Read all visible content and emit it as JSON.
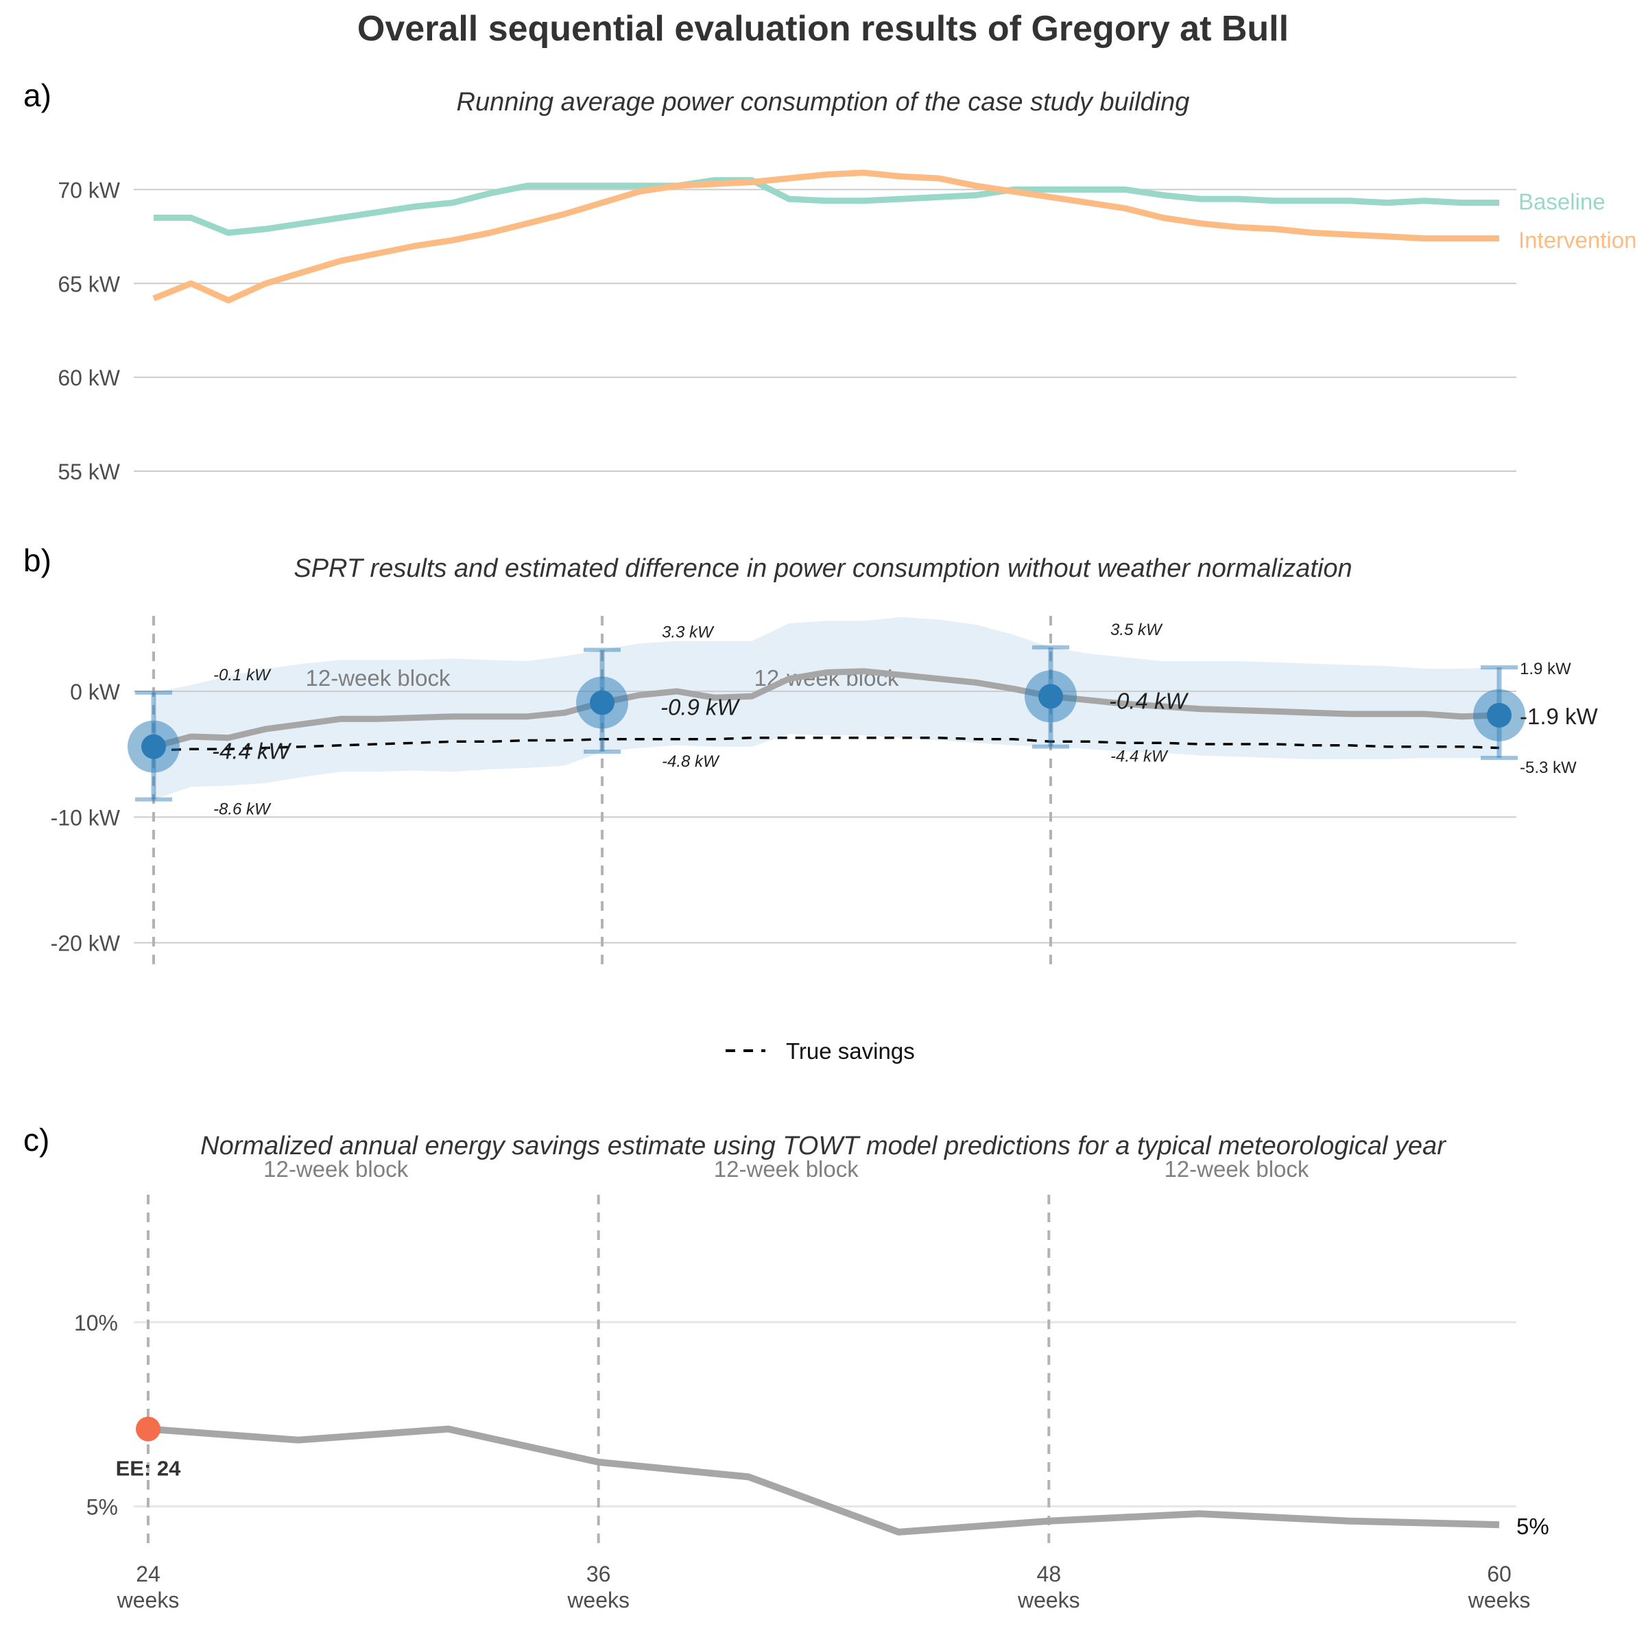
{
  "title": "Overall sequential evaluation results of Gregory at Bull",
  "panels": {
    "a": {
      "label": "a)",
      "title": "Running average power consumption of the case study building"
    },
    "b": {
      "label": "b)",
      "title": "SPRT results and estimated difference in power consumption without weather normalization"
    },
    "c": {
      "label": "c)",
      "title": "Normalized annual energy savings estimate using TOWT model predictions for a typical meteorological year"
    }
  },
  "colors": {
    "baseline": "#99d8c9",
    "intervention": "#fdbb84",
    "difference_line": "#a6a6a6",
    "ci_band": "#e4eff8",
    "sprt_point": "#2a7bb6",
    "early_exit": "#f46d4d",
    "grid": "#cccccc",
    "vline": "#b3b3b3"
  },
  "chart_data": [
    {
      "id": "a",
      "type": "line",
      "title": "Running average power consumption of the case study building",
      "x_unit": "weeks",
      "xlim": [
        24,
        60
      ],
      "ylim": [
        53.5,
        72.5
      ],
      "yticks": [
        55,
        60,
        65,
        70
      ],
      "ytick_labels": [
        "55 kW",
        "60 kW",
        "65 kW",
        "70 kW"
      ],
      "grid": true,
      "legend": "direct labels at right",
      "x": [
        24,
        25,
        26,
        27,
        28,
        29,
        30,
        31,
        32,
        33,
        34,
        35,
        36,
        37,
        38,
        39,
        40,
        41,
        42,
        43,
        44,
        45,
        46,
        47,
        48,
        49,
        50,
        51,
        52,
        53,
        54,
        55,
        56,
        57,
        58,
        59,
        60
      ],
      "series": [
        {
          "name": "Baseline",
          "color_key": "baseline",
          "values": [
            68.5,
            68.5,
            67.7,
            67.9,
            68.2,
            68.5,
            68.8,
            69.1,
            69.3,
            69.8,
            70.2,
            70.2,
            70.2,
            70.2,
            70.2,
            70.5,
            70.5,
            69.5,
            69.4,
            69.4,
            69.5,
            69.6,
            69.7,
            70.0,
            70.0,
            70.0,
            70.0,
            69.7,
            69.5,
            69.5,
            69.4,
            69.4,
            69.4,
            69.3,
            69.4,
            69.3,
            69.3
          ]
        },
        {
          "name": "Intervention",
          "color_key": "intervention",
          "values": [
            64.2,
            65.0,
            64.1,
            65.0,
            65.6,
            66.2,
            66.6,
            67.0,
            67.3,
            67.7,
            68.2,
            68.7,
            69.3,
            69.9,
            70.2,
            70.3,
            70.4,
            70.6,
            70.8,
            70.9,
            70.7,
            70.6,
            70.2,
            69.9,
            69.6,
            69.3,
            69.0,
            68.5,
            68.2,
            68.0,
            67.9,
            67.7,
            67.6,
            67.5,
            67.4,
            67.4,
            67.4
          ]
        }
      ]
    },
    {
      "id": "b",
      "type": "line",
      "title": "SPRT results and estimated difference in power consumption without weather normalization",
      "x_unit": "weeks",
      "xlim": [
        24,
        60
      ],
      "ylim": [
        -21,
        6
      ],
      "yticks": [
        -20,
        -10,
        0
      ],
      "ytick_labels": [
        "-20 kW",
        "-10 kW",
        "0 kW"
      ],
      "grid": true,
      "legend": "bottom",
      "legend_entries": [
        "True savings"
      ],
      "block_label": "12-week block",
      "vlines": [
        24,
        36,
        48
      ],
      "x": [
        24,
        25,
        26,
        27,
        28,
        29,
        30,
        31,
        32,
        33,
        34,
        35,
        36,
        37,
        38,
        39,
        40,
        41,
        42,
        43,
        44,
        45,
        46,
        47,
        48,
        49,
        50,
        51,
        52,
        53,
        54,
        55,
        56,
        57,
        58,
        59,
        60
      ],
      "difference": [
        -4.4,
        -3.6,
        -3.7,
        -3.0,
        -2.6,
        -2.2,
        -2.2,
        -2.1,
        -2.0,
        -2.0,
        -2.0,
        -1.7,
        -0.9,
        -0.3,
        0.0,
        -0.5,
        -0.4,
        1.0,
        1.5,
        1.6,
        1.3,
        1.0,
        0.7,
        0.2,
        -0.4,
        -0.7,
        -1.0,
        -1.2,
        -1.4,
        -1.5,
        -1.6,
        -1.7,
        -1.8,
        -1.8,
        -1.8,
        -2.0,
        -1.9
      ],
      "ci_upper": [
        -0.1,
        0.5,
        1.2,
        1.8,
        2.2,
        2.5,
        2.5,
        2.5,
        2.6,
        2.5,
        2.4,
        2.8,
        3.3,
        3.8,
        4.0,
        4.0,
        4.0,
        5.4,
        5.6,
        5.6,
        5.9,
        5.7,
        5.3,
        4.5,
        3.5,
        3.0,
        2.7,
        2.4,
        2.4,
        2.4,
        2.3,
        2.2,
        2.1,
        2.0,
        1.8,
        1.8,
        1.9
      ],
      "ci_lower": [
        -8.6,
        -7.6,
        -7.5,
        -7.3,
        -6.8,
        -6.4,
        -6.4,
        -6.3,
        -6.4,
        -6.2,
        -6.1,
        -5.9,
        -4.8,
        -4.5,
        -4.3,
        -4.4,
        -4.4,
        -3.4,
        -3.5,
        -3.5,
        -3.7,
        -3.9,
        -4.1,
        -4.3,
        -4.4,
        -4.6,
        -4.8,
        -4.9,
        -5.1,
        -5.2,
        -5.3,
        -5.4,
        -5.4,
        -5.4,
        -5.3,
        -5.3,
        -5.3
      ],
      "true_savings": [
        -4.7,
        -4.6,
        -4.6,
        -4.5,
        -4.4,
        -4.3,
        -4.2,
        -4.1,
        -4.0,
        -4.0,
        -3.9,
        -3.9,
        -3.8,
        -3.8,
        -3.8,
        -3.8,
        -3.7,
        -3.7,
        -3.7,
        -3.7,
        -3.7,
        -3.7,
        -3.8,
        -3.8,
        -4.0,
        -4.0,
        -4.1,
        -4.1,
        -4.2,
        -4.2,
        -4.2,
        -4.3,
        -4.3,
        -4.4,
        -4.4,
        -4.4,
        -4.5
      ],
      "sprt_points": [
        {
          "x": 24,
          "estimate": -4.4,
          "lower": -8.6,
          "upper": -0.1,
          "estimate_label": "-4.4 kW",
          "lower_label": "-8.6 kW",
          "upper_label": "-0.1 kW"
        },
        {
          "x": 36,
          "estimate": -0.9,
          "lower": -4.8,
          "upper": 3.3,
          "estimate_label": "-0.9 kW",
          "lower_label": "-4.8 kW",
          "upper_label": "3.3 kW"
        },
        {
          "x": 48,
          "estimate": -0.4,
          "lower": -4.4,
          "upper": 3.5,
          "estimate_label": "-0.4 kW",
          "lower_label": "-4.4 kW",
          "upper_label": "3.5 kW"
        },
        {
          "x": 60,
          "estimate": -1.9,
          "lower": -5.3,
          "upper": 1.9,
          "estimate_label": "-1.9 kW",
          "lower_label": "-5.3 kW",
          "upper_label": "1.9 kW"
        }
      ]
    },
    {
      "id": "c",
      "type": "line",
      "title": "Normalized annual energy savings estimate using TOWT model predictions for a typical meteorological year",
      "x_unit": "weeks",
      "xlim": [
        24,
        60
      ],
      "ylim": [
        4.0,
        13.5
      ],
      "yticks": [
        5,
        10
      ],
      "ytick_labels": [
        "5%",
        "10%"
      ],
      "grid": true,
      "block_label": "12-week block",
      "vlines": [
        24,
        36,
        48
      ],
      "xticks": [
        24,
        36,
        48,
        60
      ],
      "xtick_labels": [
        "24",
        "36",
        "48",
        "60"
      ],
      "xtick_sublabel": "weeks",
      "x": [
        24,
        28,
        32,
        36,
        40,
        44,
        48,
        52,
        56,
        60
      ],
      "values": [
        7.1,
        6.8,
        7.1,
        6.2,
        5.8,
        4.3,
        4.6,
        4.8,
        4.6,
        4.5
      ],
      "end_label": "5%",
      "early_exit": {
        "x": 24,
        "value": 7.1,
        "label": "EE: 24"
      }
    }
  ]
}
